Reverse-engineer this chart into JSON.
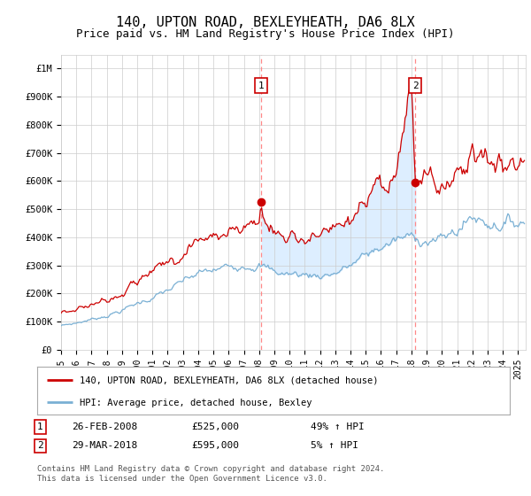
{
  "title": "140, UPTON ROAD, BEXLEYHEATH, DA6 8LX",
  "subtitle": "Price paid vs. HM Land Registry's House Price Index (HPI)",
  "title_fontsize": 11,
  "subtitle_fontsize": 9,
  "ylim": [
    0,
    1050000
  ],
  "xlim_start": 1995.0,
  "xlim_end": 2025.5,
  "yticks": [
    0,
    100000,
    200000,
    300000,
    400000,
    500000,
    600000,
    700000,
    800000,
    900000,
    1000000
  ],
  "ytick_labels": [
    "£0",
    "£100K",
    "£200K",
    "£300K",
    "£400K",
    "£500K",
    "£600K",
    "£700K",
    "£800K",
    "£900K",
    "£1M"
  ],
  "xticks": [
    1995,
    1996,
    1997,
    1998,
    1999,
    2000,
    2001,
    2002,
    2003,
    2004,
    2005,
    2006,
    2007,
    2008,
    2009,
    2010,
    2011,
    2012,
    2013,
    2014,
    2015,
    2016,
    2017,
    2018,
    2019,
    2020,
    2021,
    2022,
    2023,
    2024,
    2025
  ],
  "red_line_color": "#cc0000",
  "blue_line_color": "#7ab0d4",
  "fill_color": "#ddeeff",
  "vline_color": "#ff8888",
  "marker_box_color": "#cc0000",
  "sale1_x": 2008.12,
  "sale1_y": 525000,
  "sale1_label": "1",
  "sale1_date": "26-FEB-2008",
  "sale1_price": "£525,000",
  "sale1_hpi": "49% ↑ HPI",
  "sale2_x": 2018.25,
  "sale2_y": 595000,
  "sale2_label": "2",
  "sale2_date": "29-MAR-2018",
  "sale2_price": "£595,000",
  "sale2_hpi": "5% ↑ HPI",
  "legend_line1": "140, UPTON ROAD, BEXLEYHEATH, DA6 8LX (detached house)",
  "legend_line2": "HPI: Average price, detached house, Bexley",
  "footer": "Contains HM Land Registry data © Crown copyright and database right 2024.\nThis data is licensed under the Open Government Licence v3.0."
}
